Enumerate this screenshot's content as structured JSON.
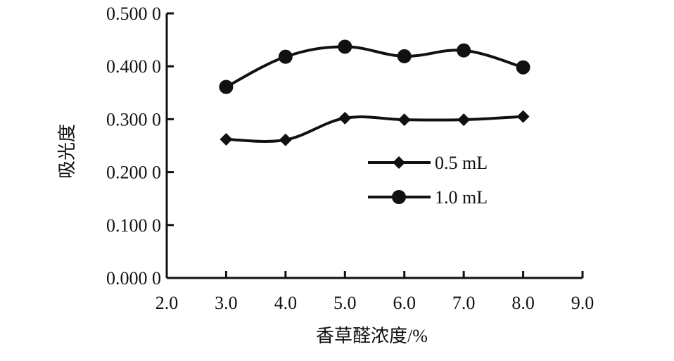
{
  "chart_data": {
    "type": "line",
    "title": "",
    "xlabel": "香草醛浓度/%",
    "ylabel": "吸光度",
    "xlim": [
      2.0,
      9.0
    ],
    "ylim": [
      0.0,
      0.5
    ],
    "x_ticks": [
      "2.0",
      "3.0",
      "4.0",
      "5.0",
      "6.0",
      "7.0",
      "8.0",
      "9.0"
    ],
    "y_ticks": [
      "0.000 0",
      "0.100 0",
      "0.200 0",
      "0.300 0",
      "0.400 0",
      "0.500 0"
    ],
    "x": [
      3.0,
      4.0,
      5.0,
      6.0,
      7.0,
      8.0
    ],
    "series": [
      {
        "name": "0.5 mL",
        "marker": "diamond",
        "color": "#111111",
        "values": [
          0.262,
          0.261,
          0.302,
          0.299,
          0.299,
          0.305
        ]
      },
      {
        "name": "1.0 mL",
        "marker": "circle",
        "color": "#111111",
        "values": [
          0.361,
          0.418,
          0.437,
          0.419,
          0.43,
          0.398
        ]
      }
    ],
    "legend": "center-right",
    "grid": false
  }
}
